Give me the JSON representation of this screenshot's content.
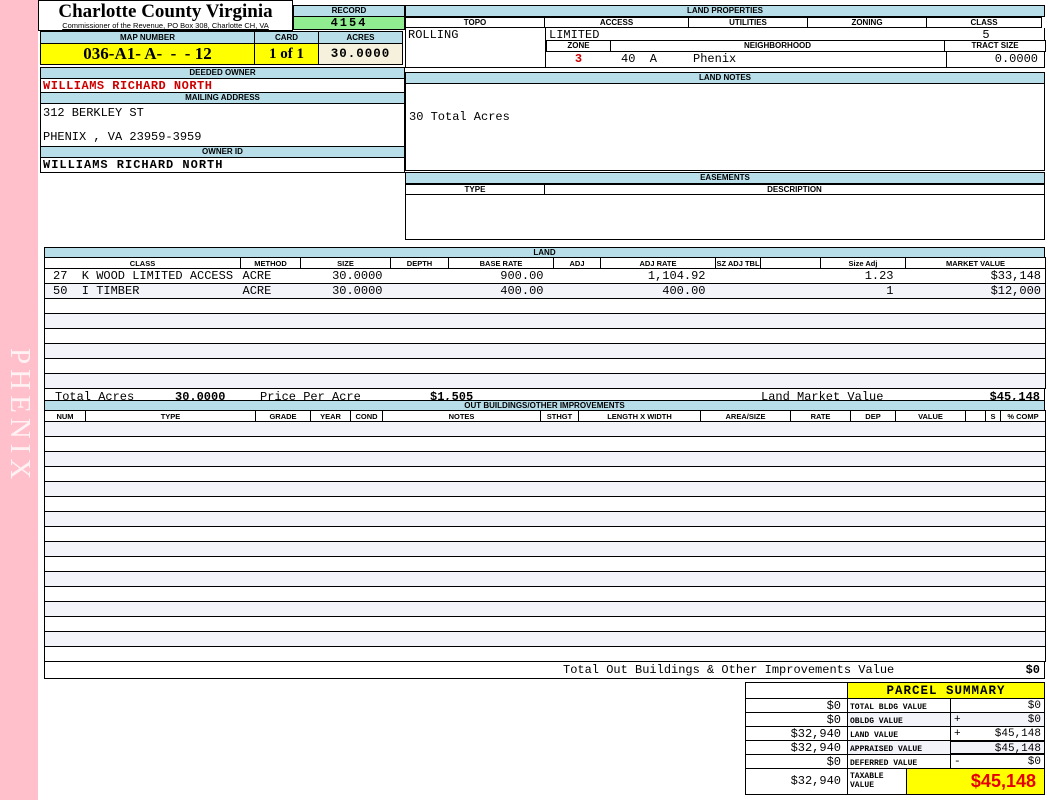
{
  "watermark": "PHENIX",
  "header": {
    "title": "Charlotte County Virginia",
    "subtitle": "Commissioner of the Revenue, PO Box 308, Charlotte CH, VA",
    "record_label": "RECORD",
    "record_value": "4154",
    "map_number_label": "MAP NUMBER",
    "map_number": "036-A1- A-  -  - 12",
    "card_label": "CARD",
    "card_value": "1 of 1",
    "acres_label": "ACRES",
    "acres_value": "30.0000"
  },
  "land_properties": {
    "title": "LAND PROPERTIES",
    "topo_label": "TOPO",
    "topo": "ROLLING",
    "access_label": "ACCESS",
    "access": "LIMITED",
    "utilities_label": "UTILITIES",
    "utilities": "",
    "zoning_label": "ZONING",
    "zoning": "",
    "class_label": "CLASS",
    "class": "5",
    "zone_label": "ZONE",
    "zone": "3",
    "neighborhood_label": "NEIGHBORHOOD",
    "neighborhood": "40  A     Phenix",
    "tract_size_label": "TRACT SIZE",
    "tract_size": "0.0000"
  },
  "land_notes": {
    "title": "LAND NOTES",
    "note": "30 Total Acres"
  },
  "easements": {
    "title": "EASEMENTS",
    "type_label": "TYPE",
    "description_label": "DESCRIPTION"
  },
  "owner": {
    "deeded_owner_label": "DEEDED OWNER",
    "deeded_owner": "WILLIAMS RICHARD NORTH",
    "mailing_address_label": "MAILING ADDRESS",
    "address_line1": "312 BERKLEY ST",
    "address_line2": "PHENIX , VA 23959-3959",
    "owner_id_label": "OWNER ID",
    "owner_id": "WILLIAMS RICHARD NORTH"
  },
  "land_table": {
    "title": "LAND",
    "columns": [
      "CLASS",
      "METHOD",
      "SIZE",
      "DEPTH",
      "BASE RATE",
      "ADJ",
      "ADJ RATE",
      "SZ ADJ TBL",
      "",
      "Size Adj",
      "MARKET VALUE"
    ],
    "rows": [
      {
        "class": "27  K WOOD LIMITED ACCESS",
        "method": "ACRE",
        "size": "30.0000",
        "depth": "",
        "base_rate": "900.00",
        "adj": "",
        "adj_rate": "1,104.92",
        "sz_adj_tbl": "",
        "blank": "",
        "size_adj": "1.23",
        "market_value": "$33,148"
      },
      {
        "class": "50  I TIMBER",
        "method": "ACRE",
        "size": "30.0000",
        "depth": "",
        "base_rate": "400.00",
        "adj": "",
        "adj_rate": "400.00",
        "sz_adj_tbl": "",
        "blank": "",
        "size_adj": "1",
        "market_value": "$12,000"
      }
    ],
    "empty_rows": 6,
    "totals": {
      "total_acres_label": "Total Acres",
      "total_acres": "30.0000",
      "price_per_acre_label": "Price Per Acre",
      "price_per_acre": "$1,505",
      "land_market_value_label": "Land Market Value",
      "land_market_value": "$45,148"
    }
  },
  "out_buildings": {
    "title": "OUT BUILDINGS/OTHER IMPROVEMENTS",
    "columns": [
      "NUM",
      "TYPE",
      "GRADE",
      "YEAR",
      "COND",
      "NOTES",
      "STHGT",
      "LENGTH X WIDTH",
      "AREA/SIZE",
      "RATE",
      "DEP",
      "VALUE",
      "",
      "S",
      "% COMP"
    ],
    "empty_rows": 16,
    "total_label": "Total Out Buildings & Other Improvements Value",
    "total_value": "$0"
  },
  "parcel_summary": {
    "title": "PARCEL SUMMARY",
    "rows": [
      {
        "prior": "$0",
        "label": "TOTAL BLDG VALUE",
        "op": "",
        "value": "$0"
      },
      {
        "prior": "$0",
        "label": "OBLDG VALUE",
        "op": "+",
        "value": "$0"
      },
      {
        "prior": "$32,940",
        "label": "LAND VALUE",
        "op": "+",
        "value": "$45,148"
      },
      {
        "prior": "$32,940",
        "label": "APPRAISED VALUE",
        "op": "",
        "value": "$45,148"
      },
      {
        "prior": "$0",
        "label": "DEFERRED VALUE",
        "op": "-",
        "value": "$0"
      }
    ],
    "taxable": {
      "prior": "$32,940",
      "label": "TAXABLE VALUE",
      "value": "$45,148"
    }
  },
  "colors": {
    "header_blue": "#b8dee9",
    "record_green": "#90ee90",
    "highlight_yellow": "#ffff00",
    "acres_beige": "#f5f1dc",
    "pink": "#ffc0cb",
    "alert_red": "#cc0000",
    "taxable_red": "#e60000",
    "stripe": "#f3f3fa"
  }
}
